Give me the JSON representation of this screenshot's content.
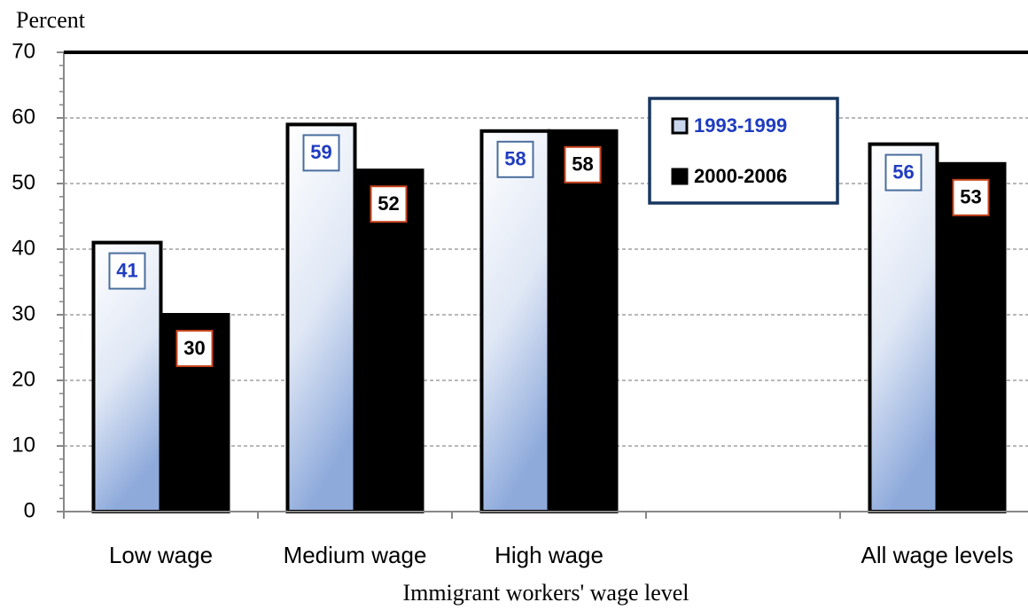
{
  "chart_data": {
    "type": "bar",
    "y_label": "Percent",
    "x_label": "Immigrant workers' wage level",
    "categories": [
      "Low wage",
      "Medium wage",
      "High wage",
      null,
      "All wage levels"
    ],
    "series": [
      {
        "name": "1993-1999",
        "color": "#8eaadb",
        "values": [
          41,
          59,
          58,
          null,
          56
        ]
      },
      {
        "name": "2000-2006",
        "color": "#000000",
        "values": [
          30,
          52,
          58,
          null,
          53
        ]
      }
    ],
    "ylim": [
      0,
      70
    ],
    "yticks": [
      0,
      10,
      20,
      30,
      40,
      50,
      60,
      70
    ],
    "grid": true,
    "legend": "upper right"
  }
}
